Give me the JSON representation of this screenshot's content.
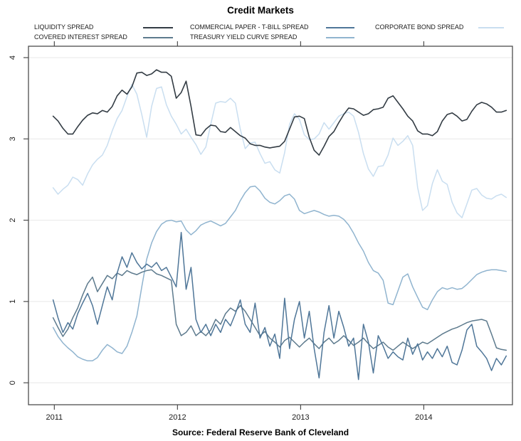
{
  "title": "Credit Markets",
  "source_note": "Source: Federal Reserve Bank of Cleveland",
  "legend": {
    "items": [
      {
        "label": "LIQUIDITY SPREAD",
        "series": "liquidity_spread"
      },
      {
        "label": "COVERED INTEREST SPREAD",
        "series": "covered_interest_spread"
      },
      {
        "label": "COMMERCIAL PAPER - T-BILL SPREAD",
        "series": "commercial_paper_tbill_spread"
      },
      {
        "label": "TREASURY YIELD CURVE SPREAD",
        "series": "treasury_yield_curve_spread"
      },
      {
        "label": "CORPORATE BOND SPREAD",
        "series": "corporate_bond_spread"
      }
    ]
  },
  "colors": {
    "liquidity_spread": "#333c44",
    "covered_interest_spread": "#5d7a8d",
    "commercial_paper_tbill_spread": "#4f7698",
    "treasury_yield_curve_spread": "#90b4cf",
    "corporate_bond_spread": "#c9def0",
    "axis": "#4d4d4d",
    "gridline": "#e8e8e8",
    "tick_label": "#1a1a1a"
  },
  "chart_data": {
    "type": "line",
    "title": "Credit Markets",
    "legend_position": "top",
    "x_axis": {
      "tick_labels": [
        "2011",
        "2012",
        "2013",
        "2014"
      ],
      "tick_values": [
        2011,
        2012,
        2013,
        2014
      ],
      "range": [
        2010.79,
        2014.72
      ],
      "gridlines": false
    },
    "y_axis": {
      "tick_labels": [
        "0",
        "1",
        "2",
        "3",
        "4"
      ],
      "tick_values": [
        0,
        1,
        2,
        3,
        4
      ],
      "range": [
        -0.27,
        4.14
      ],
      "gridlines": true
    },
    "x_start": 2010.99,
    "x_step": 0.04,
    "draw_order": [
      4,
      3,
      1,
      2,
      0
    ],
    "series": [
      {
        "name": "LIQUIDITY SPREAD",
        "key": "liquidity_spread",
        "values": [
          3.28,
          3.22,
          3.13,
          3.06,
          3.06,
          3.15,
          3.23,
          3.29,
          3.32,
          3.31,
          3.35,
          3.33,
          3.4,
          3.53,
          3.6,
          3.55,
          3.64,
          3.81,
          3.82,
          3.78,
          3.8,
          3.85,
          3.82,
          3.82,
          3.77,
          3.5,
          3.57,
          3.71,
          3.4,
          3.05,
          3.04,
          3.12,
          3.17,
          3.16,
          3.09,
          3.08,
          3.14,
          3.09,
          3.04,
          3.01,
          2.94,
          2.92,
          2.92,
          2.9,
          2.89,
          2.9,
          2.91,
          2.97,
          3.12,
          3.27,
          3.28,
          3.25,
          3.02,
          2.86,
          2.8,
          2.91,
          3.03,
          3.09,
          3.2,
          3.3,
          3.38,
          3.37,
          3.33,
          3.29,
          3.31,
          3.36,
          3.37,
          3.39,
          3.5,
          3.53,
          3.45,
          3.37,
          3.28,
          3.22,
          3.1,
          3.06,
          3.06,
          3.04,
          3.09,
          3.22,
          3.3,
          3.32,
          3.28,
          3.22,
          3.24,
          3.34,
          3.42,
          3.45,
          3.43,
          3.39,
          3.33,
          3.33,
          3.35
        ]
      },
      {
        "name": "COVERED INTEREST SPREAD",
        "key": "covered_interest_spread",
        "values": [
          0.8,
          0.68,
          0.57,
          0.66,
          0.8,
          0.92,
          1.08,
          1.22,
          1.3,
          1.12,
          1.22,
          1.32,
          1.28,
          1.35,
          1.32,
          1.38,
          1.35,
          1.33,
          1.36,
          1.38,
          1.39,
          1.34,
          1.32,
          1.29,
          1.26,
          0.72,
          0.58,
          0.62,
          0.7,
          0.58,
          0.63,
          0.58,
          0.65,
          0.78,
          0.72,
          0.85,
          0.92,
          0.88,
          0.95,
          0.88,
          0.78,
          0.68,
          0.58,
          0.63,
          0.55,
          0.5,
          0.44,
          0.52,
          0.56,
          0.5,
          0.44,
          0.5,
          0.55,
          0.48,
          0.42,
          0.5,
          0.55,
          0.48,
          0.52,
          0.58,
          0.52,
          0.46,
          0.5,
          0.55,
          0.48,
          0.42,
          0.46,
          0.5,
          0.44,
          0.4,
          0.45,
          0.5,
          0.46,
          0.42,
          0.46,
          0.5,
          0.48,
          0.52,
          0.56,
          0.6,
          0.63,
          0.66,
          0.68,
          0.71,
          0.74,
          0.76,
          0.77,
          0.78,
          0.76,
          0.6,
          0.43,
          0.41,
          0.4
        ]
      },
      {
        "name": "COMMERCIAL PAPER - T-BILL SPREAD",
        "key": "commercial_paper_tbill_spread",
        "values": [
          1.02,
          0.8,
          0.62,
          0.74,
          0.66,
          0.85,
          0.98,
          1.1,
          0.95,
          0.72,
          0.95,
          1.18,
          1.02,
          1.35,
          1.55,
          1.42,
          1.6,
          1.48,
          1.4,
          1.46,
          1.42,
          1.48,
          1.38,
          1.42,
          1.3,
          1.18,
          1.85,
          1.15,
          1.42,
          0.78,
          0.62,
          0.72,
          0.58,
          0.72,
          0.62,
          0.78,
          0.7,
          0.85,
          1.02,
          0.72,
          0.62,
          0.98,
          0.55,
          0.68,
          0.45,
          0.6,
          0.3,
          1.04,
          0.42,
          0.78,
          1.0,
          0.55,
          0.88,
          0.42,
          0.06,
          0.62,
          0.95,
          0.55,
          0.88,
          0.68,
          0.45,
          0.55,
          0.04,
          0.72,
          0.5,
          0.12,
          0.58,
          0.45,
          0.3,
          0.38,
          0.32,
          0.28,
          0.55,
          0.35,
          0.48,
          0.28,
          0.38,
          0.3,
          0.42,
          0.32,
          0.45,
          0.25,
          0.22,
          0.4,
          0.65,
          0.72,
          0.45,
          0.38,
          0.3,
          0.15,
          0.3,
          0.22,
          0.33
        ]
      },
      {
        "name": "TREASURY YIELD CURVE SPREAD",
        "key": "treasury_yield_curve_spread",
        "values": [
          0.68,
          0.57,
          0.49,
          0.43,
          0.38,
          0.32,
          0.29,
          0.27,
          0.27,
          0.31,
          0.4,
          0.47,
          0.43,
          0.38,
          0.36,
          0.45,
          0.62,
          0.82,
          1.18,
          1.52,
          1.72,
          1.86,
          1.95,
          1.99,
          2.0,
          1.98,
          1.99,
          1.88,
          1.82,
          1.87,
          1.94,
          1.97,
          1.99,
          1.96,
          1.93,
          1.96,
          2.04,
          2.12,
          2.24,
          2.34,
          2.41,
          2.42,
          2.36,
          2.27,
          2.22,
          2.2,
          2.24,
          2.3,
          2.32,
          2.26,
          2.12,
          2.08,
          2.1,
          2.12,
          2.1,
          2.07,
          2.05,
          2.06,
          2.05,
          2.01,
          1.94,
          1.84,
          1.72,
          1.62,
          1.48,
          1.38,
          1.35,
          1.26,
          0.98,
          0.96,
          1.13,
          1.3,
          1.34,
          1.18,
          1.05,
          0.93,
          0.9,
          1.02,
          1.12,
          1.17,
          1.15,
          1.17,
          1.15,
          1.16,
          1.21,
          1.27,
          1.33,
          1.36,
          1.38,
          1.39,
          1.39,
          1.38,
          1.37
        ]
      },
      {
        "name": "CORPORATE BOND SPREAD",
        "key": "corporate_bond_spread",
        "values": [
          2.4,
          2.32,
          2.38,
          2.43,
          2.53,
          2.5,
          2.43,
          2.57,
          2.68,
          2.75,
          2.8,
          2.92,
          3.1,
          3.25,
          3.35,
          3.52,
          3.67,
          3.55,
          3.3,
          3.02,
          3.4,
          3.62,
          3.64,
          3.42,
          3.28,
          3.18,
          3.06,
          3.12,
          3.02,
          2.93,
          2.81,
          2.9,
          3.18,
          3.44,
          3.46,
          3.45,
          3.5,
          3.44,
          3.12,
          2.88,
          2.95,
          2.96,
          2.82,
          2.7,
          2.72,
          2.62,
          2.58,
          2.83,
          3.18,
          3.31,
          3.24,
          3.05,
          2.99,
          3.0,
          3.06,
          3.2,
          3.12,
          3.2,
          3.28,
          3.31,
          3.33,
          3.28,
          3.08,
          2.82,
          2.63,
          2.54,
          2.66,
          2.67,
          2.8,
          3.01,
          2.92,
          2.97,
          3.04,
          2.92,
          2.4,
          2.12,
          2.18,
          2.45,
          2.62,
          2.48,
          2.44,
          2.22,
          2.09,
          2.03,
          2.2,
          2.37,
          2.39,
          2.31,
          2.27,
          2.26,
          2.3,
          2.32,
          2.28
        ]
      }
    ]
  }
}
